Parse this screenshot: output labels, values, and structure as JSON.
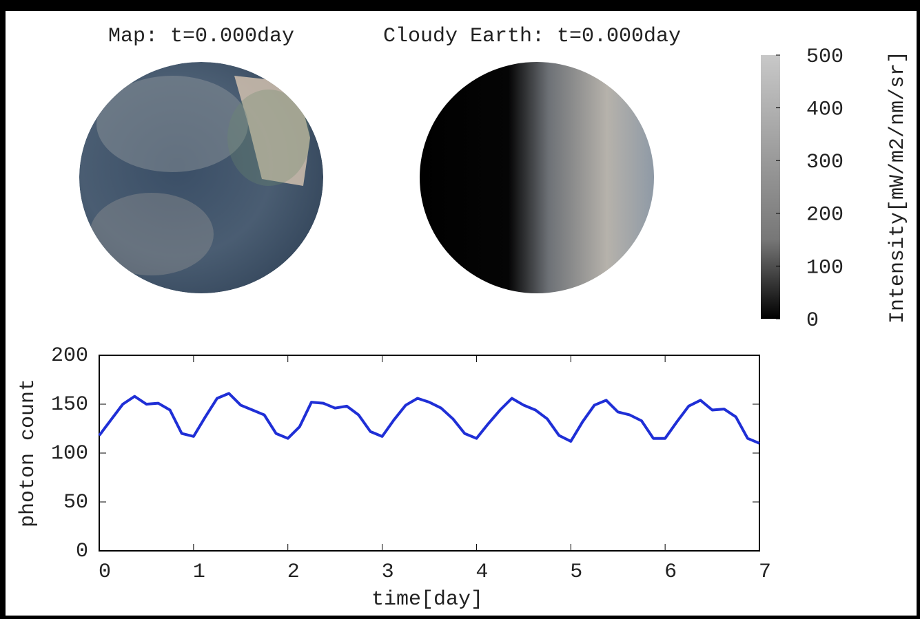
{
  "chart_data": [
    {
      "type": "colorbar",
      "titles": [
        "Map: t=0.000day",
        "Cloudy Earth: t=0.000day"
      ],
      "label": "Intensity[mW/m2/nm/sr]",
      "ylim": [
        0,
        500
      ],
      "yticks": [
        0,
        100,
        200,
        300,
        400,
        500
      ]
    },
    {
      "type": "line",
      "xlabel": "time[day]",
      "ylabel": "photon count",
      "color": "#1f2fd6",
      "x": [
        0,
        0.125,
        0.25,
        0.375,
        0.5,
        0.625,
        0.75,
        0.875,
        1,
        1.125,
        1.25,
        1.375,
        1.5,
        1.625,
        1.75,
        1.875,
        2,
        2.125,
        2.25,
        2.375,
        2.5,
        2.625,
        2.75,
        2.875,
        3,
        3.125,
        3.25,
        3.375,
        3.5,
        3.625,
        3.75,
        3.875,
        4,
        4.125,
        4.25,
        4.375,
        4.5,
        4.625,
        4.75,
        4.875,
        5,
        5.125,
        5.25,
        5.375,
        5.5,
        5.625,
        5.75,
        5.875,
        6,
        6.125,
        6.25,
        6.375,
        6.5,
        6.625,
        6.75,
        6.875,
        7
      ],
      "values": [
        118,
        134,
        150,
        158,
        150,
        151,
        144,
        120,
        117,
        137,
        156,
        161,
        149,
        144,
        139,
        120,
        115,
        127,
        152,
        151,
        146,
        148,
        139,
        122,
        117,
        134,
        149,
        156,
        152,
        146,
        135,
        120,
        115,
        130,
        144,
        156,
        149,
        144,
        135,
        118,
        112,
        132,
        149,
        154,
        142,
        139,
        133,
        115,
        115,
        132,
        148,
        154,
        144,
        145,
        137,
        115,
        110
      ],
      "xlim": [
        0,
        7
      ],
      "xticks": [
        0,
        1,
        2,
        3,
        4,
        5,
        6,
        7
      ],
      "ylim": [
        0,
        200
      ],
      "yticks": [
        0,
        50,
        100,
        150,
        200
      ]
    }
  ]
}
